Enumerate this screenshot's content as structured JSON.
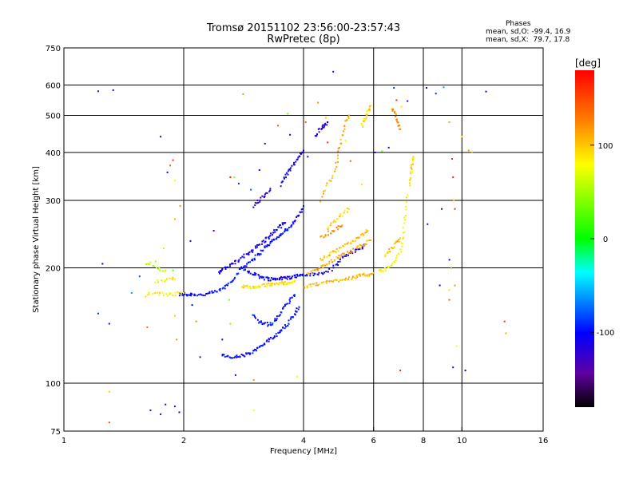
{
  "chart_data": {
    "type": "scatter",
    "title": "Tromsø 20151102 23:56:00-23:57:43",
    "subtitle": "RwPretec (8p)",
    "xlabel": "Frequency [MHz]",
    "ylabel": "Stationary phase Virtual Height [km]",
    "x_scale": "log",
    "y_scale": "log",
    "xlim": [
      1,
      16
    ],
    "ylim": [
      75,
      750
    ],
    "x_ticks": [
      1,
      2,
      4,
      6,
      8,
      10,
      16
    ],
    "x_tick_labels": [
      "1",
      "2",
      "4",
      "6",
      "8",
      "10",
      "16"
    ],
    "x_grid": [
      2,
      4,
      6,
      8,
      10
    ],
    "y_ticks": [
      75,
      100,
      200,
      300,
      400,
      500,
      600,
      750
    ],
    "y_tick_labels": [
      "75",
      "100",
      "200",
      "300",
      "400",
      "500",
      "600",
      "750"
    ],
    "y_grid": [
      100,
      200,
      300,
      400,
      500,
      600
    ],
    "grid": true,
    "stats": {
      "heading": "Phases",
      "line_o": "mean, sd,O: -99.4, 16.9",
      "line_x": "mean, sd,X:  79.7, 17.8"
    },
    "colorbar": {
      "label": "[deg]",
      "range": [
        -180,
        180
      ],
      "ticks": [
        100,
        0,
        -100
      ],
      "tick_labels": [
        "100",
        "0",
        "-100"
      ]
    },
    "traces": [
      {
        "phase": -100,
        "points": [
          [
            1.95,
            170
          ],
          [
            2.0,
            171
          ],
          [
            2.05,
            170
          ],
          [
            2.1,
            171
          ],
          [
            2.2,
            170
          ],
          [
            2.3,
            171
          ],
          [
            2.4,
            173
          ],
          [
            2.5,
            176
          ],
          [
            2.6,
            182
          ],
          [
            2.7,
            190
          ],
          [
            2.8,
            200
          ],
          [
            2.9,
            206
          ],
          [
            3.0,
            212
          ],
          [
            3.1,
            218
          ],
          [
            3.2,
            226
          ],
          [
            3.3,
            232
          ],
          [
            3.4,
            238
          ],
          [
            3.5,
            244
          ],
          [
            3.6,
            250
          ],
          [
            3.7,
            256
          ],
          [
            3.8,
            264
          ],
          [
            3.9,
            275
          ],
          [
            4.0,
            290
          ]
        ]
      },
      {
        "phase": -110,
        "points": [
          [
            2.45,
            195
          ],
          [
            2.5,
            198
          ],
          [
            2.6,
            202
          ],
          [
            2.7,
            207
          ],
          [
            2.8,
            212
          ],
          [
            2.9,
            218
          ],
          [
            3.0,
            224
          ],
          [
            3.1,
            230
          ],
          [
            3.2,
            236
          ],
          [
            3.3,
            243
          ],
          [
            3.4,
            250
          ],
          [
            3.5,
            257
          ],
          [
            3.6,
            262
          ]
        ]
      },
      {
        "phase": -105,
        "points": [
          [
            2.8,
            200
          ],
          [
            2.9,
            196
          ],
          [
            3.0,
            193
          ],
          [
            3.1,
            190
          ],
          [
            3.2,
            188
          ],
          [
            3.3,
            187
          ],
          [
            3.4,
            187
          ],
          [
            3.5,
            188
          ],
          [
            3.6,
            188
          ],
          [
            3.7,
            189
          ],
          [
            3.8,
            190
          ],
          [
            3.9,
            191
          ],
          [
            4.0,
            192
          ],
          [
            4.2,
            192
          ],
          [
            4.4,
            193
          ],
          [
            4.6,
            195
          ],
          [
            4.8,
            202
          ],
          [
            5.0,
            212
          ],
          [
            5.2,
            218
          ],
          [
            5.4,
            222
          ],
          [
            5.6,
            226
          ],
          [
            5.7,
            230
          ]
        ]
      },
      {
        "phase": -100,
        "points": [
          [
            2.5,
            118
          ],
          [
            2.6,
            117
          ],
          [
            2.7,
            117
          ],
          [
            2.8,
            118
          ],
          [
            2.9,
            119
          ],
          [
            3.0,
            121
          ],
          [
            3.1,
            124
          ],
          [
            3.2,
            127
          ],
          [
            3.3,
            130
          ],
          [
            3.4,
            133
          ],
          [
            3.5,
            137
          ],
          [
            3.6,
            141
          ],
          [
            3.7,
            146
          ],
          [
            3.8,
            152
          ],
          [
            3.9,
            158
          ]
        ]
      },
      {
        "phase": -95,
        "points": [
          [
            3.0,
            150
          ],
          [
            3.1,
            145
          ],
          [
            3.2,
            143
          ],
          [
            3.3,
            142
          ],
          [
            3.4,
            146
          ],
          [
            3.5,
            152
          ],
          [
            3.6,
            158
          ],
          [
            3.7,
            165
          ],
          [
            3.8,
            170
          ]
        ]
      },
      {
        "phase": -110,
        "points": [
          [
            3.5,
            330
          ],
          [
            3.6,
            345
          ],
          [
            3.7,
            360
          ],
          [
            3.8,
            375
          ],
          [
            3.9,
            390
          ],
          [
            4.0,
            405
          ]
        ]
      },
      {
        "phase": -120,
        "points": [
          [
            3.0,
            290
          ],
          [
            3.1,
            300
          ],
          [
            3.2,
            310
          ],
          [
            3.3,
            322
          ]
        ]
      },
      {
        "phase": -115,
        "points": [
          [
            4.3,
            440
          ],
          [
            4.4,
            460
          ],
          [
            4.5,
            470
          ],
          [
            4.6,
            480
          ]
        ]
      },
      {
        "phase": 85,
        "points": [
          [
            1.6,
            170
          ],
          [
            1.7,
            172
          ],
          [
            1.8,
            170
          ],
          [
            1.9,
            171
          ],
          [
            2.0,
            172
          ]
        ]
      },
      {
        "phase": 85,
        "points": [
          [
            1.7,
            185
          ],
          [
            1.8,
            186
          ],
          [
            1.9,
            187
          ]
        ]
      },
      {
        "phase": 60,
        "points": [
          [
            1.6,
            206
          ],
          [
            1.7,
            200
          ],
          [
            1.8,
            197
          ]
        ]
      },
      {
        "phase": 90,
        "points": [
          [
            2.8,
            180
          ],
          [
            2.9,
            178
          ],
          [
            3.0,
            178
          ],
          [
            3.1,
            179
          ],
          [
            3.2,
            180
          ],
          [
            3.3,
            181
          ],
          [
            3.4,
            182
          ],
          [
            3.5,
            182
          ],
          [
            3.6,
            183
          ],
          [
            3.7,
            183
          ],
          [
            3.8,
            184
          ]
        ]
      },
      {
        "phase": 105,
        "points": [
          [
            4.0,
            178
          ],
          [
            4.2,
            180
          ],
          [
            4.4,
            182
          ],
          [
            4.6,
            184
          ],
          [
            4.8,
            185
          ],
          [
            5.0,
            187
          ],
          [
            5.2,
            188
          ],
          [
            5.4,
            189
          ],
          [
            5.6,
            191
          ],
          [
            5.8,
            192
          ],
          [
            6.0,
            194
          ]
        ]
      },
      {
        "phase": 110,
        "points": [
          [
            4.1,
            193
          ],
          [
            4.3,
            197
          ],
          [
            4.5,
            202
          ],
          [
            4.7,
            208
          ],
          [
            4.9,
            213
          ],
          [
            5.1,
            218
          ],
          [
            5.3,
            222
          ],
          [
            5.5,
            226
          ],
          [
            5.7,
            231
          ],
          [
            5.9,
            236
          ]
        ]
      },
      {
        "phase": 120,
        "points": [
          [
            4.4,
            240
          ],
          [
            4.6,
            246
          ],
          [
            4.8,
            252
          ],
          [
            5.0,
            258
          ]
        ]
      },
      {
        "phase": 100,
        "points": [
          [
            4.4,
            210
          ],
          [
            4.6,
            215
          ],
          [
            4.8,
            220
          ],
          [
            5.0,
            226
          ],
          [
            5.2,
            232
          ],
          [
            5.4,
            238
          ],
          [
            5.6,
            244
          ],
          [
            5.8,
            250
          ]
        ]
      },
      {
        "phase": 95,
        "points": [
          [
            4.6,
            255
          ],
          [
            4.8,
            265
          ],
          [
            5.0,
            275
          ],
          [
            5.2,
            285
          ]
        ]
      },
      {
        "phase": 80,
        "points": [
          [
            6.2,
            196
          ],
          [
            6.4,
            198
          ],
          [
            6.6,
            202
          ],
          [
            6.8,
            208
          ],
          [
            7.0,
            220
          ],
          [
            7.1,
            240
          ],
          [
            7.2,
            270
          ],
          [
            7.3,
            310
          ]
        ]
      },
      {
        "phase": 100,
        "points": [
          [
            6.4,
            215
          ],
          [
            6.6,
            223
          ],
          [
            6.8,
            231
          ],
          [
            7.0,
            239
          ]
        ]
      },
      {
        "phase": 95,
        "points": [
          [
            7.4,
            330
          ],
          [
            7.45,
            350
          ],
          [
            7.5,
            370
          ],
          [
            7.55,
            390
          ]
        ]
      },
      {
        "phase": 110,
        "points": [
          [
            4.4,
            300
          ],
          [
            4.6,
            330
          ],
          [
            4.8,
            360
          ],
          [
            4.9,
            400
          ],
          [
            5.0,
            440
          ],
          [
            5.1,
            480
          ],
          [
            5.2,
            500
          ]
        ]
      },
      {
        "phase": 95,
        "points": [
          [
            5.6,
            470
          ],
          [
            5.7,
            490
          ],
          [
            5.8,
            510
          ],
          [
            5.9,
            530
          ]
        ]
      },
      {
        "phase": 120,
        "points": [
          [
            6.7,
            520
          ],
          [
            6.8,
            500
          ],
          [
            6.9,
            480
          ],
          [
            7.0,
            460
          ]
        ]
      }
    ],
    "scatter": [
      [
        1.22,
        578,
        -130
      ],
      [
        1.33,
        582,
        -110
      ],
      [
        1.25,
        205,
        -100
      ],
      [
        1.22,
        152,
        -90
      ],
      [
        1.3,
        143,
        -120
      ],
      [
        1.48,
        172,
        -60
      ],
      [
        1.55,
        190,
        -80
      ],
      [
        1.65,
        207,
        70
      ],
      [
        1.7,
        208,
        50
      ],
      [
        1.75,
        440,
        -110
      ],
      [
        1.78,
        225,
        90
      ],
      [
        1.82,
        355,
        -110
      ],
      [
        1.85,
        370,
        140
      ],
      [
        1.88,
        382,
        160
      ],
      [
        1.9,
        338,
        80
      ],
      [
        1.96,
        290,
        120
      ],
      [
        2.08,
        235,
        -120
      ],
      [
        1.9,
        268,
        110
      ],
      [
        1.88,
        197,
        30
      ],
      [
        1.62,
        140,
        140
      ],
      [
        1.9,
        150,
        100
      ],
      [
        1.92,
        130,
        120
      ],
      [
        2.2,
        117,
        -120
      ],
      [
        2.38,
        250,
        -140
      ],
      [
        2.5,
        130,
        -100
      ],
      [
        2.62,
        143,
        40
      ],
      [
        2.62,
        345,
        170
      ],
      [
        2.68,
        345,
        40
      ],
      [
        2.75,
        332,
        -90
      ],
      [
        2.82,
        568,
        120
      ],
      [
        2.95,
        320,
        -80
      ],
      [
        3.1,
        360,
        -110
      ],
      [
        3.2,
        422,
        -100
      ],
      [
        3.45,
        470,
        140
      ],
      [
        3.65,
        505,
        40
      ],
      [
        3.7,
        445,
        -110
      ],
      [
        4.05,
        480,
        140
      ],
      [
        4.1,
        390,
        -110
      ],
      [
        4.35,
        540,
        120
      ],
      [
        4.55,
        493,
        100
      ],
      [
        4.6,
        425,
        160
      ],
      [
        4.75,
        650,
        -130
      ],
      [
        5.1,
        430,
        80
      ],
      [
        5.25,
        380,
        140
      ],
      [
        5.6,
        330,
        90
      ],
      [
        6.05,
        400,
        -110
      ],
      [
        6.3,
        403,
        40
      ],
      [
        6.55,
        412,
        -110
      ],
      [
        6.75,
        590,
        -90
      ],
      [
        6.85,
        548,
        160
      ],
      [
        7.05,
        527,
        90
      ],
      [
        7.3,
        545,
        -110
      ],
      [
        8.15,
        590,
        -110
      ],
      [
        8.6,
        570,
        -90
      ],
      [
        9.0,
        592,
        -60
      ],
      [
        9.3,
        480,
        110
      ],
      [
        9.45,
        385,
        160
      ],
      [
        9.5,
        345,
        170
      ],
      [
        9.55,
        300,
        100
      ],
      [
        9.6,
        285,
        160
      ],
      [
        8.2,
        260,
        -120
      ],
      [
        8.9,
        285,
        -110
      ],
      [
        9.3,
        210,
        -110
      ],
      [
        9.4,
        200,
        120
      ],
      [
        8.8,
        180,
        -110
      ],
      [
        9.3,
        175,
        90
      ],
      [
        9.6,
        180,
        120
      ],
      [
        9.3,
        165,
        140
      ],
      [
        10.0,
        440,
        90
      ],
      [
        10.4,
        405,
        120
      ],
      [
        10.6,
        400,
        110
      ],
      [
        11.5,
        577,
        -110
      ],
      [
        12.8,
        145,
        160
      ],
      [
        12.9,
        135,
        110
      ],
      [
        9.5,
        110,
        -120
      ],
      [
        9.7,
        125,
        80
      ],
      [
        10.2,
        108,
        -100
      ],
      [
        7.0,
        108,
        160
      ],
      [
        3.85,
        104,
        80
      ],
      [
        3.0,
        102,
        120
      ],
      [
        2.7,
        105,
        -110
      ],
      [
        2.6,
        165,
        40
      ],
      [
        2.1,
        160,
        -100
      ],
      [
        2.15,
        145,
        120
      ],
      [
        1.65,
        85,
        -120
      ],
      [
        1.75,
        83,
        -110
      ],
      [
        1.8,
        88,
        -130
      ],
      [
        1.9,
        87,
        -120
      ],
      [
        1.95,
        84,
        -120
      ],
      [
        1.3,
        95,
        100
      ],
      [
        1.3,
        79,
        150
      ],
      [
        3.0,
        85,
        80
      ]
    ]
  }
}
